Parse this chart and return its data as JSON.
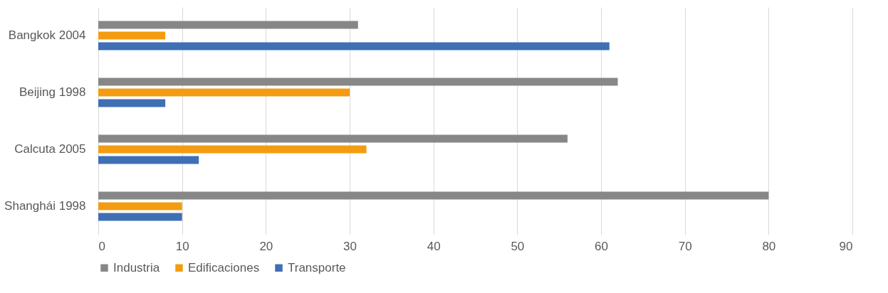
{
  "chart_data": {
    "type": "bar",
    "orientation": "horizontal",
    "categories": [
      "Bangkok 2004",
      "Beijing 1998",
      "Calcuta 2005",
      "Shanghái 1998"
    ],
    "series": [
      {
        "name": "Industria",
        "color": "#878787",
        "values": [
          31,
          62,
          56,
          80
        ]
      },
      {
        "name": "Edificaciones",
        "color": "#f39c12",
        "values": [
          8,
          30,
          32,
          10
        ]
      },
      {
        "name": "Transporte",
        "color": "#3f6fb5",
        "values": [
          61,
          8,
          12,
          10
        ]
      }
    ],
    "xlim": [
      0,
      90
    ],
    "xticks": [
      0,
      10,
      20,
      30,
      40,
      50,
      60,
      70,
      80,
      90
    ],
    "grid": "x",
    "legend": "bottom"
  }
}
